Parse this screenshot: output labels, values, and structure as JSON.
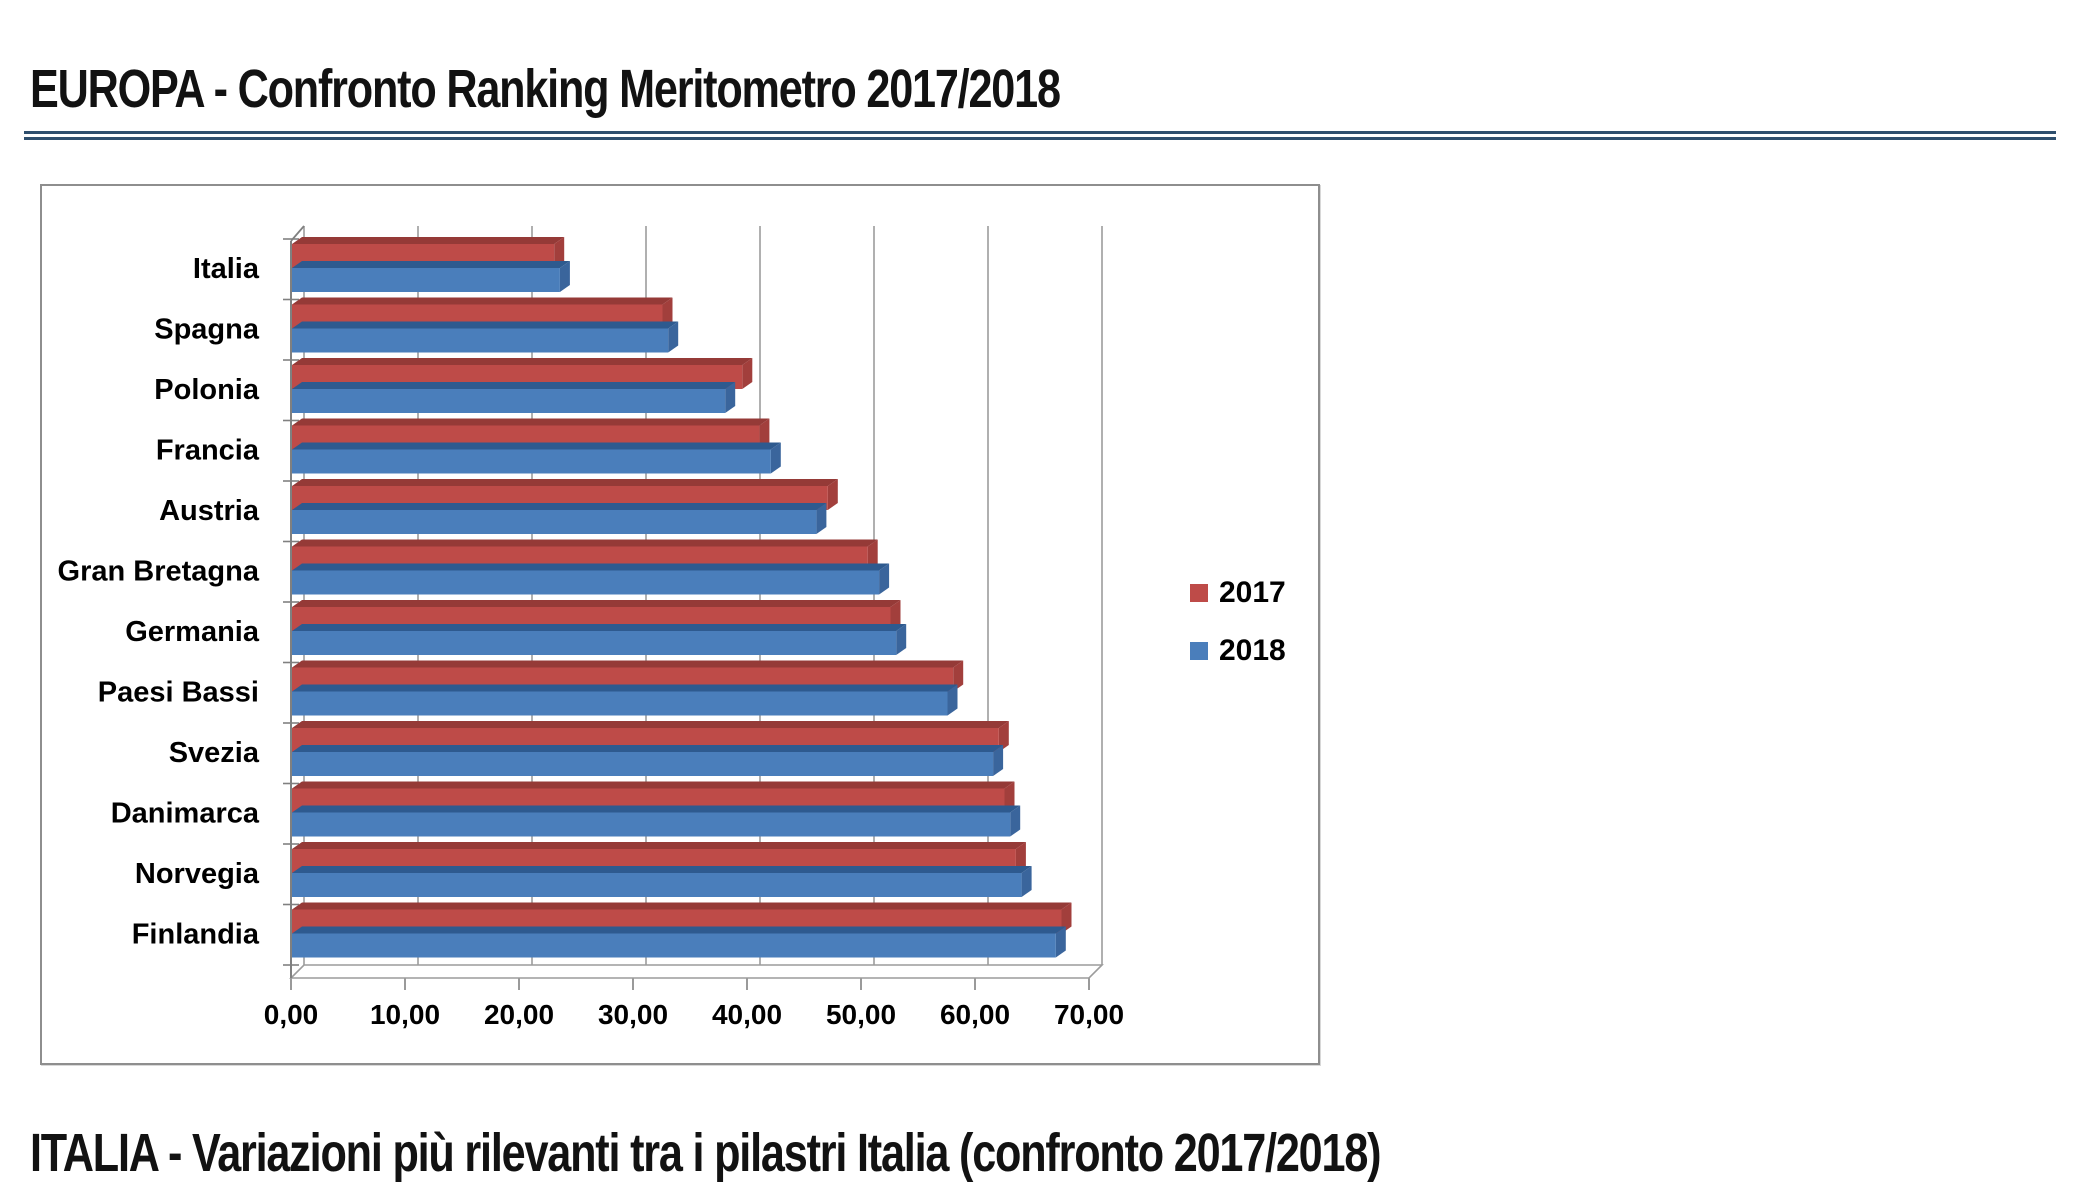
{
  "page": {
    "title_europa": "EUROPA - Confronto Ranking Meritometro 2017/2018",
    "title_italia": "ITALIA - Variazioni più rilevanti tra i pilastri Italia (confronto 2017/2018)",
    "rule_color": "#2F4F6E",
    "heading_color": "#121212",
    "background": "#FFFFFF"
  },
  "chart_data": {
    "type": "bar",
    "orientation": "horizontal",
    "style": "excel-3d",
    "title": "",
    "xlabel": "",
    "ylabel": "",
    "xlim": [
      0,
      70
    ],
    "grid": true,
    "legend_position": "right",
    "categories": [
      "Italia",
      "Spagna",
      "Polonia",
      "Francia",
      "Austria",
      "Gran Bretagna",
      "Germania",
      "Paesi Bassi",
      "Svezia",
      "Danimarca",
      "Norvegia",
      "Finlandia"
    ],
    "series": [
      {
        "name": "2017",
        "values": [
          23.0,
          32.5,
          39.5,
          41.0,
          47.0,
          50.5,
          52.5,
          58.0,
          62.0,
          62.5,
          63.5,
          67.5
        ],
        "color": "#BE4B48",
        "color_top": "#953A37",
        "color_side": "#A23F3C"
      },
      {
        "name": "2018",
        "values": [
          23.5,
          33.0,
          38.0,
          42.0,
          46.0,
          51.5,
          53.0,
          57.5,
          61.5,
          63.0,
          64.0,
          67.0
        ],
        "color": "#4A7EBB",
        "color_top": "#2E5A8F",
        "color_side": "#3A659C"
      }
    ],
    "x_ticks": [
      "0,00",
      "10,00",
      "20,00",
      "30,00",
      "40,00",
      "50,00",
      "60,00",
      "70,00"
    ],
    "x_tick_values": [
      0,
      10,
      20,
      30,
      40,
      50,
      60,
      70
    ],
    "grid_color": "#9C9C9C",
    "axis_color": "#808080",
    "frame_color": "#8E8E8E",
    "label_color": "#000000"
  }
}
